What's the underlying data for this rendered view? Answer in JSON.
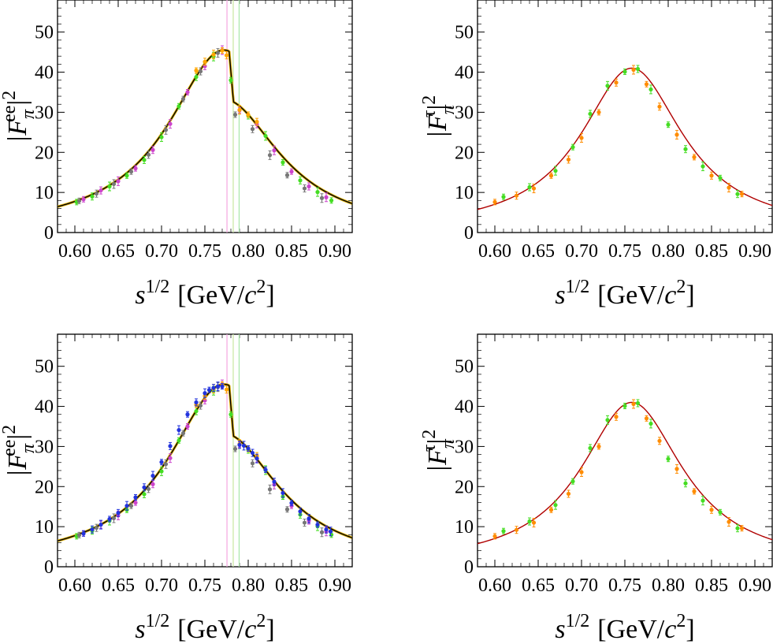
{
  "panels": [
    {
      "id": "top-left",
      "ylabel_base": "|F",
      "ylabel_sub": "π",
      "ylabel_sup": "ee",
      "ylabel_close": "|",
      "ylabel_exp": "2",
      "xlabel_s": "s",
      "xlabel_exp": "1/2",
      "xlabel_unit": "[GeV/",
      "xlabel_c": "c",
      "xlabel_cexp": "2",
      "xlabel_close": "]"
    },
    {
      "id": "top-right",
      "ylabel_base": "|F",
      "ylabel_sub": "π",
      "ylabel_sup": "τ",
      "ylabel_close": "|",
      "ylabel_exp": "2",
      "xlabel_s": "s",
      "xlabel_exp": "1/2",
      "xlabel_unit": "[GeV/",
      "xlabel_c": "c",
      "xlabel_cexp": "2",
      "xlabel_close": "]"
    },
    {
      "id": "bottom-left",
      "ylabel_base": "|F",
      "ylabel_sub": "π",
      "ylabel_sup": "ee",
      "ylabel_close": "|",
      "ylabel_exp": "2",
      "xlabel_s": "s",
      "xlabel_exp": "1/2",
      "xlabel_unit": "[GeV/",
      "xlabel_c": "c",
      "xlabel_cexp": "2",
      "xlabel_close": "]"
    },
    {
      "id": "bottom-right",
      "ylabel_base": "|F",
      "ylabel_sub": "π",
      "ylabel_sup": "τ",
      "ylabel_close": "|",
      "ylabel_exp": "2",
      "xlabel_s": "s",
      "xlabel_exp": "1/2",
      "xlabel_unit": "[GeV/",
      "xlabel_c": "c",
      "xlabel_cexp": "2",
      "xlabel_close": "]"
    }
  ],
  "chart_data": [
    {
      "type": "scatter",
      "xlim": [
        0.58,
        0.92
      ],
      "ylim": [
        0,
        58
      ],
      "xticks": [
        "0.60",
        "0.65",
        "0.70",
        "0.75",
        "0.80",
        "0.85",
        "0.90"
      ],
      "yticks": [
        "0",
        "10",
        "20",
        "30",
        "40",
        "50"
      ],
      "grid": false,
      "vertical_lines": [
        {
          "x": 0.7755,
          "color": "#f4a6e0"
        },
        {
          "x": 0.7827,
          "color": "#c8e6a0"
        },
        {
          "x": 0.7895,
          "color": "#a8e6a8"
        }
      ],
      "fit_curve": {
        "color": "#000000",
        "model": "rho-omega",
        "overlay_color": "#e0b000"
      },
      "series": [
        {
          "color": "#44dd22",
          "x": [
            0.602,
            0.62,
            0.64,
            0.66,
            0.68,
            0.7,
            0.72,
            0.74,
            0.76,
            0.78,
            0.8,
            0.82,
            0.84,
            0.86,
            0.88,
            0.896
          ],
          "y": [
            7.6,
            9.0,
            11.5,
            14.2,
            18.1,
            23.8,
            31.5,
            38.8,
            43.9,
            38.0,
            29.2,
            24.1,
            17.5,
            13.0,
            10.1,
            8.0
          ]
        },
        {
          "color": "#cc44cc",
          "x": [
            0.61,
            0.63,
            0.65,
            0.67,
            0.69,
            0.71,
            0.73,
            0.75,
            0.77,
            0.79,
            0.81,
            0.83,
            0.85,
            0.87,
            0.89
          ],
          "y": [
            8.3,
            10.5,
            12.8,
            16.0,
            20.6,
            27.1,
            35.0,
            41.5,
            45.5,
            30.5,
            27.0,
            20.5,
            15.2,
            11.5,
            8.8
          ]
        },
        {
          "color": "#777777",
          "x": [
            0.605,
            0.625,
            0.645,
            0.665,
            0.685,
            0.705,
            0.725,
            0.745,
            0.765,
            0.785,
            0.805,
            0.825,
            0.845,
            0.865,
            0.885
          ],
          "y": [
            7.9,
            9.7,
            12.1,
            15.2,
            19.4,
            25.6,
            33.3,
            40.2,
            44.8,
            29.4,
            25.8,
            19.3,
            14.3,
            11.0,
            8.6
          ]
        },
        {
          "color": "#ffa500",
          "x": [
            0.74,
            0.75,
            0.76,
            0.77,
            0.775,
            0.79,
            0.8,
            0.81
          ],
          "y": [
            40.4,
            42.6,
            44.4,
            45.4,
            44.2,
            30.6,
            29.4,
            27.6
          ]
        }
      ]
    },
    {
      "type": "scatter",
      "xlim": [
        0.58,
        0.92
      ],
      "ylim": [
        0,
        58
      ],
      "xticks": [
        "0.60",
        "0.65",
        "0.70",
        "0.75",
        "0.80",
        "0.85",
        "0.90"
      ],
      "yticks": [
        "0",
        "10",
        "20",
        "30",
        "40",
        "50"
      ],
      "grid": false,
      "vertical_lines": [],
      "fit_curve": {
        "color": "#b00000",
        "model": "rho"
      },
      "series": [
        {
          "color": "#44dd22",
          "x": [
            0.61,
            0.64,
            0.67,
            0.69,
            0.71,
            0.73,
            0.75,
            0.765,
            0.78,
            0.8,
            0.82,
            0.84,
            0.86,
            0.88
          ],
          "y": [
            8.9,
            11.3,
            15.4,
            21.3,
            29.6,
            36.6,
            40.1,
            40.8,
            35.7,
            26.9,
            20.8,
            16.5,
            13.6,
            9.6
          ]
        },
        {
          "color": "#ff8c00",
          "x": [
            0.6,
            0.625,
            0.645,
            0.665,
            0.685,
            0.7,
            0.72,
            0.74,
            0.76,
            0.775,
            0.79,
            0.81,
            0.83,
            0.85,
            0.87,
            0.885
          ],
          "y": [
            7.6,
            9.2,
            11.0,
            14.2,
            18.2,
            23.6,
            30.0,
            37.4,
            40.6,
            37.0,
            31.4,
            24.4,
            18.8,
            14.2,
            11.2,
            9.6
          ]
        }
      ]
    },
    {
      "type": "scatter",
      "xlim": [
        0.58,
        0.92
      ],
      "ylim": [
        0,
        58
      ],
      "xticks": [
        "0.60",
        "0.65",
        "0.70",
        "0.75",
        "0.80",
        "0.85",
        "0.90"
      ],
      "yticks": [
        "0",
        "10",
        "20",
        "30",
        "40",
        "50"
      ],
      "grid": false,
      "vertical_lines": [
        {
          "x": 0.7755,
          "color": "#f4a6e0"
        },
        {
          "x": 0.7827,
          "color": "#c8e6a0"
        },
        {
          "x": 0.7895,
          "color": "#a8e6a8"
        }
      ],
      "fit_curve": {
        "color": "#000000",
        "model": "rho-omega",
        "overlay_color": "#e0b000"
      },
      "series": [
        {
          "color": "#44dd22",
          "x": [
            0.602,
            0.62,
            0.64,
            0.66,
            0.68,
            0.7,
            0.72,
            0.74,
            0.76,
            0.78,
            0.8,
            0.82,
            0.84,
            0.86,
            0.88,
            0.896
          ],
          "y": [
            7.6,
            9.0,
            11.5,
            14.2,
            18.1,
            23.8,
            31.5,
            38.8,
            43.9,
            38.0,
            29.2,
            24.1,
            17.5,
            13.0,
            10.1,
            8.0
          ]
        },
        {
          "color": "#cc44cc",
          "x": [
            0.61,
            0.63,
            0.65,
            0.67,
            0.69,
            0.71,
            0.73,
            0.75,
            0.77,
            0.79,
            0.81,
            0.83,
            0.85,
            0.87,
            0.89
          ],
          "y": [
            8.3,
            10.5,
            12.8,
            16.0,
            20.6,
            27.1,
            35.0,
            41.5,
            45.5,
            30.5,
            27.0,
            20.5,
            15.2,
            11.5,
            8.8
          ]
        },
        {
          "color": "#777777",
          "x": [
            0.605,
            0.625,
            0.645,
            0.665,
            0.685,
            0.705,
            0.725,
            0.745,
            0.765,
            0.785,
            0.805,
            0.825,
            0.845,
            0.865,
            0.885
          ],
          "y": [
            7.9,
            9.7,
            12.1,
            15.2,
            19.4,
            25.6,
            33.3,
            40.2,
            44.8,
            29.4,
            25.8,
            19.3,
            14.3,
            11.0,
            8.6
          ]
        },
        {
          "color": "#ffa500",
          "x": [
            0.74,
            0.75,
            0.76,
            0.77,
            0.775,
            0.79,
            0.8,
            0.81
          ],
          "y": [
            40.4,
            42.6,
            44.4,
            45.4,
            44.2,
            30.6,
            29.4,
            27.6
          ]
        },
        {
          "color": "#2233dd",
          "x": [
            0.61,
            0.62,
            0.63,
            0.64,
            0.65,
            0.66,
            0.67,
            0.68,
            0.69,
            0.7,
            0.71,
            0.72,
            0.73,
            0.74,
            0.75,
            0.755,
            0.76,
            0.765,
            0.77,
            0.79,
            0.795,
            0.8,
            0.805,
            0.81,
            0.82,
            0.83,
            0.84,
            0.85,
            0.86,
            0.87,
            0.88,
            0.89,
            0.895
          ],
          "y": [
            8.3,
            9.3,
            10.5,
            11.9,
            13.4,
            15.2,
            17.3,
            19.8,
            22.7,
            26.1,
            30.1,
            34.1,
            38.0,
            41.0,
            43.3,
            44.1,
            44.6,
            45.0,
            45.0,
            30.4,
            30.2,
            29.5,
            28.4,
            27.0,
            24.2,
            21.2,
            18.4,
            15.9,
            13.8,
            12.0,
            10.5,
            9.3,
            8.8
          ]
        }
      ]
    },
    {
      "type": "scatter",
      "xlim": [
        0.58,
        0.92
      ],
      "ylim": [
        0,
        58
      ],
      "xticks": [
        "0.60",
        "0.65",
        "0.70",
        "0.75",
        "0.80",
        "0.85",
        "0.90"
      ],
      "yticks": [
        "0",
        "10",
        "20",
        "30",
        "40",
        "50"
      ],
      "grid": false,
      "vertical_lines": [],
      "fit_curve": {
        "color": "#b00000",
        "model": "rho"
      },
      "series": [
        {
          "color": "#44dd22",
          "x": [
            0.61,
            0.64,
            0.67,
            0.69,
            0.71,
            0.73,
            0.75,
            0.765,
            0.78,
            0.8,
            0.82,
            0.84,
            0.86,
            0.88
          ],
          "y": [
            8.9,
            11.3,
            15.4,
            21.3,
            29.6,
            36.6,
            40.1,
            40.8,
            35.7,
            26.9,
            20.8,
            16.5,
            13.6,
            9.6
          ]
        },
        {
          "color": "#ff8c00",
          "x": [
            0.6,
            0.625,
            0.645,
            0.665,
            0.685,
            0.7,
            0.72,
            0.74,
            0.76,
            0.775,
            0.79,
            0.81,
            0.83,
            0.85,
            0.87,
            0.885
          ],
          "y": [
            7.6,
            9.2,
            11.0,
            14.2,
            18.2,
            23.6,
            30.0,
            37.4,
            40.6,
            37.0,
            31.4,
            24.4,
            18.8,
            14.2,
            11.2,
            9.6
          ]
        }
      ]
    }
  ]
}
